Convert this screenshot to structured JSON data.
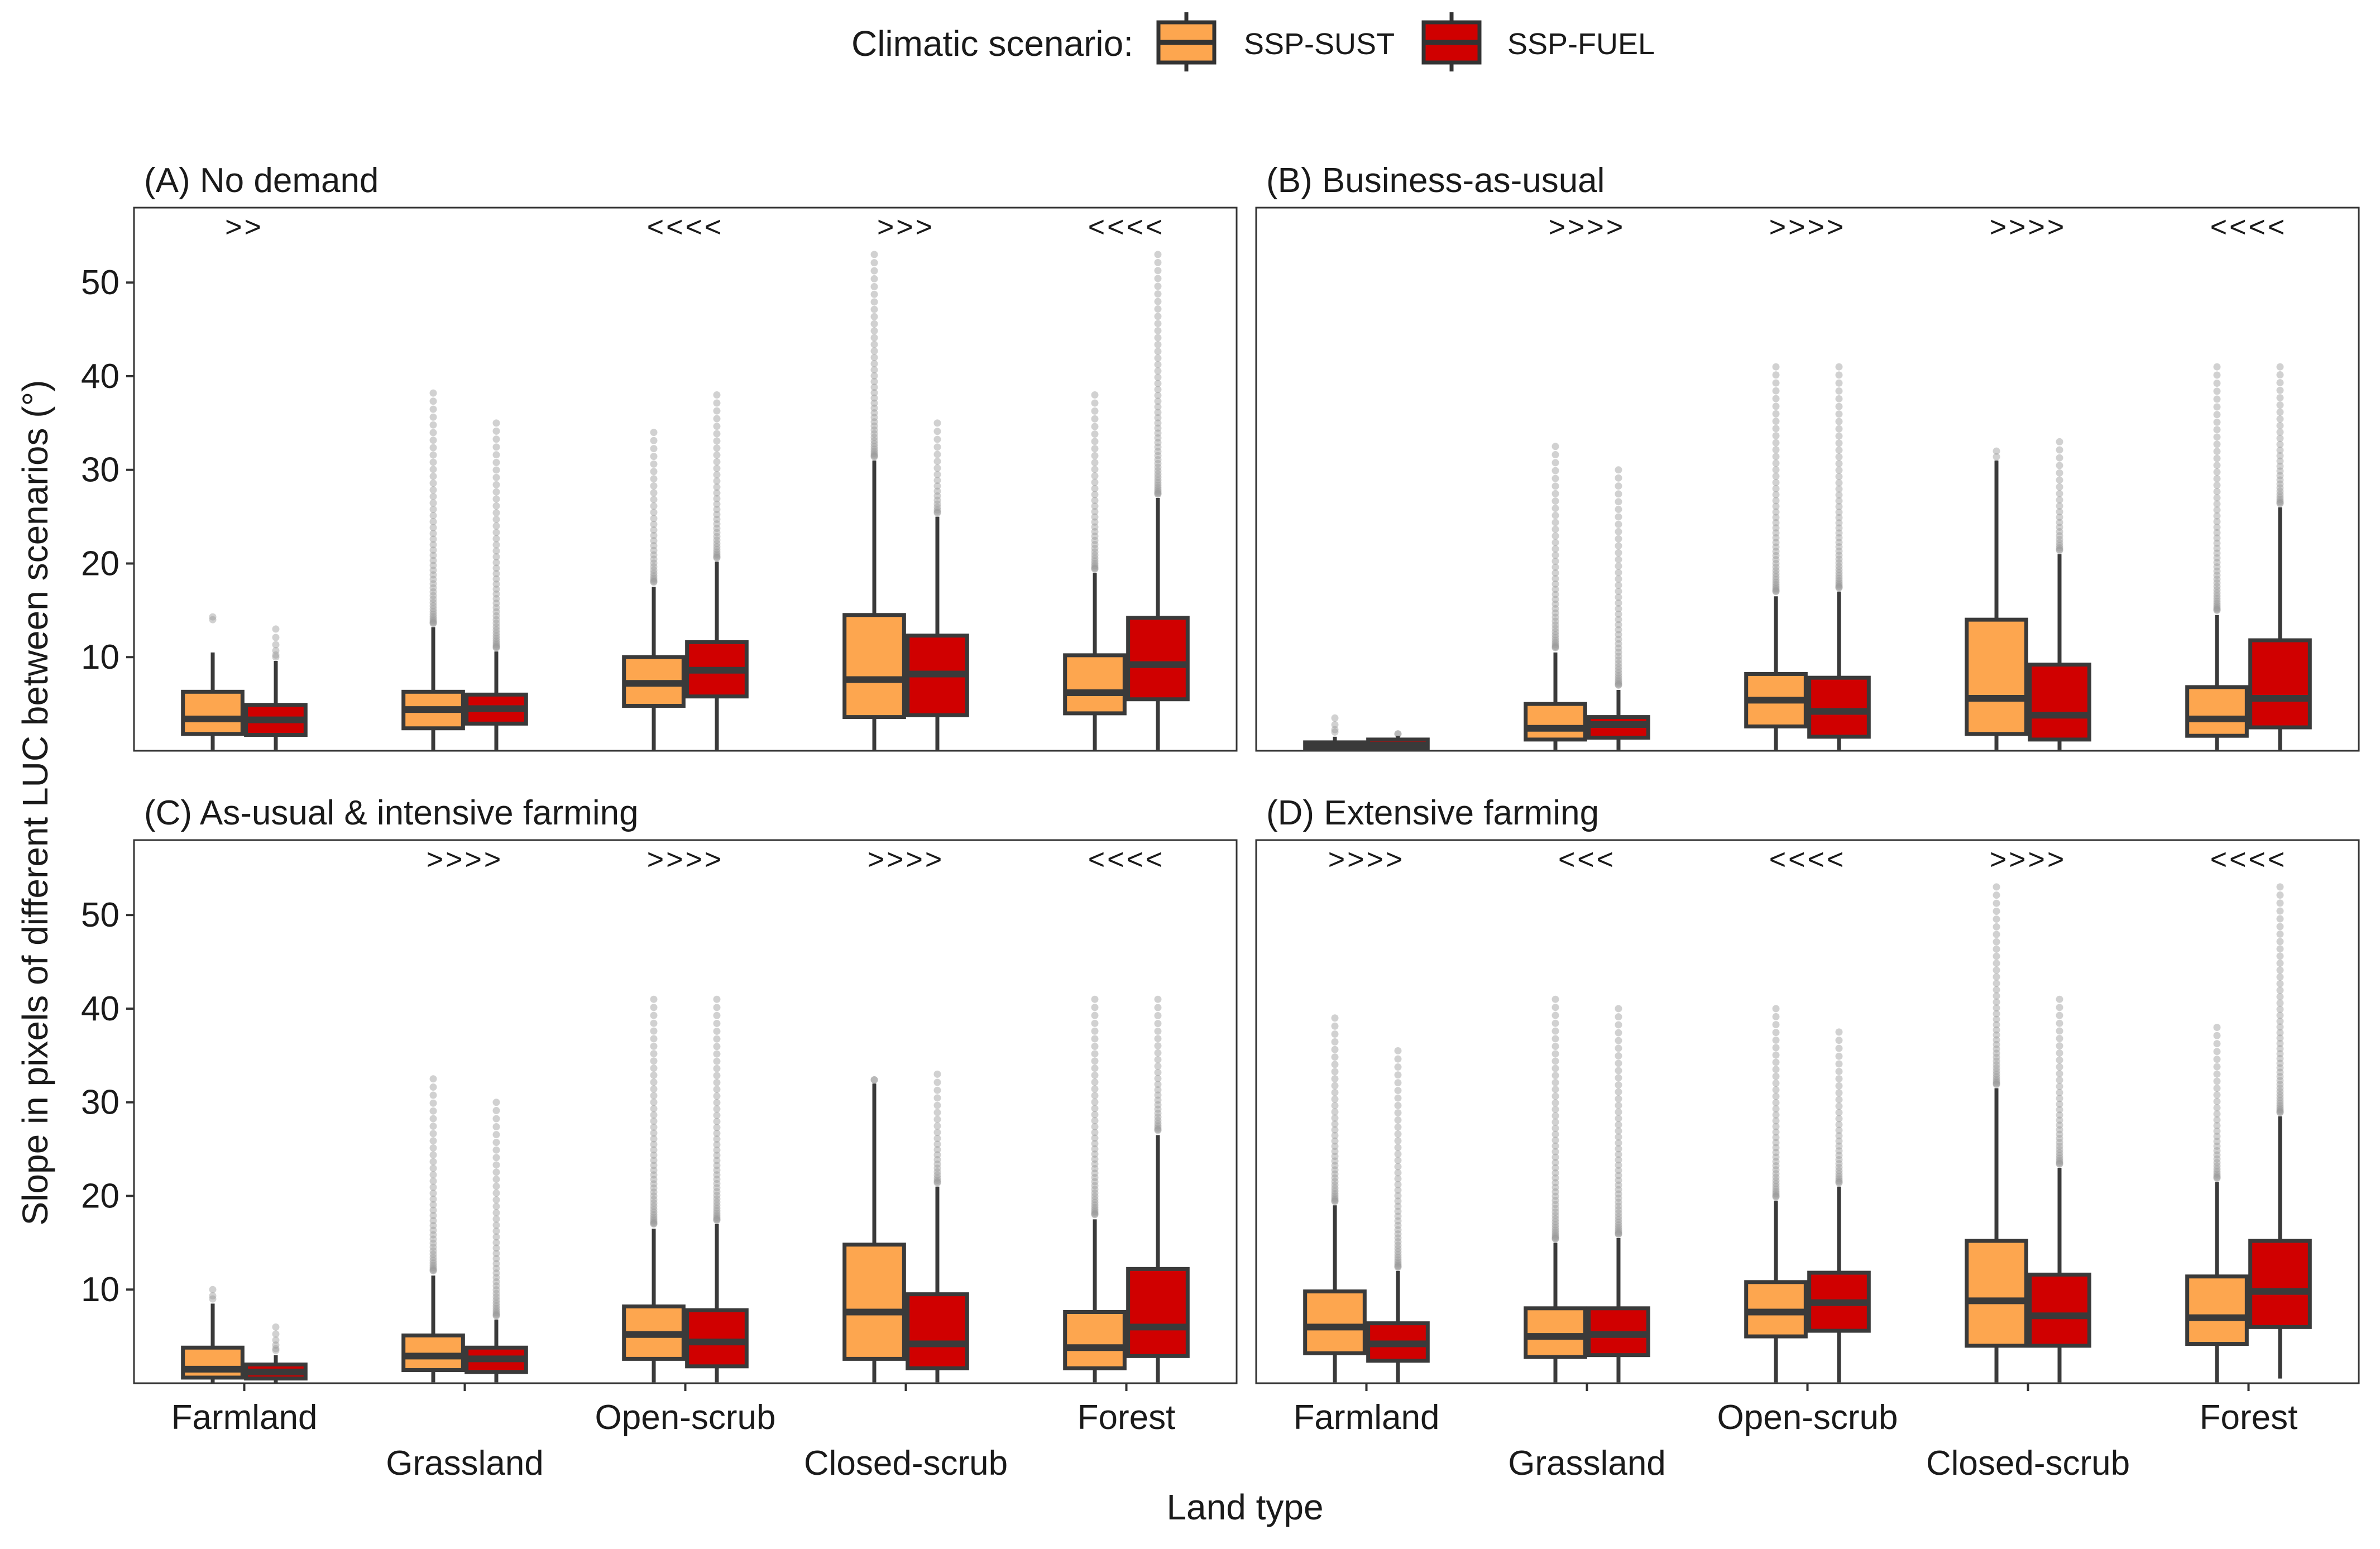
{
  "legend": {
    "title": "Climatic scenario:",
    "entries": [
      {
        "label": "SSP-SUST",
        "color": "#FDA64F"
      },
      {
        "label": "SSP-FUEL",
        "color": "#D00000"
      }
    ]
  },
  "colors": {
    "box_outline": "#3a3a3a",
    "outlier": "#9a9a9a",
    "frame": "#333333"
  },
  "chart_data": {
    "type": "boxplot",
    "xlabel": "Land type",
    "ylabel": "Slope in pixels of different LUC between scenarios (°)",
    "ylim": [
      0,
      58
    ],
    "yticks": [
      10,
      20,
      30,
      40,
      50
    ],
    "categories": [
      "Farmland",
      "Grassland",
      "Open-scrub",
      "Closed-scrub",
      "Forest"
    ],
    "series_names": [
      "SSP-SUST",
      "SSP-FUEL"
    ],
    "panels": [
      {
        "title": "(A) No demand",
        "significance": [
          ">>",
          "",
          "<<<<",
          ">>>",
          "<<<<"
        ],
        "boxes": [
          [
            {
              "q1": 1.8,
              "median": 3.4,
              "q3": 6.3,
              "wlo": 0.1,
              "whi": 10.5,
              "omin": 14.0,
              "omax": 14.3
            },
            {
              "q1": 1.7,
              "median": 3.3,
              "q3": 4.9,
              "wlo": 0.1,
              "whi": 9.6,
              "omin": 10.0,
              "omax": 13.0
            }
          ],
          [
            {
              "q1": 2.4,
              "median": 4.4,
              "q3": 6.3,
              "wlo": 0.1,
              "whi": 13.2,
              "omin": 13.6,
              "omax": 38.2
            },
            {
              "q1": 2.9,
              "median": 4.5,
              "q3": 6.0,
              "wlo": 0.1,
              "whi": 10.6,
              "omin": 11.0,
              "omax": 35.0
            }
          ],
          [
            {
              "q1": 4.8,
              "median": 7.2,
              "q3": 10.0,
              "wlo": 0.1,
              "whi": 17.5,
              "omin": 18.0,
              "omax": 34.0
            },
            {
              "q1": 5.8,
              "median": 8.6,
              "q3": 11.6,
              "wlo": 0.1,
              "whi": 20.2,
              "omin": 20.6,
              "omax": 38.0
            }
          ],
          [
            {
              "q1": 3.6,
              "median": 7.6,
              "q3": 14.5,
              "wlo": 0.1,
              "whi": 31.0,
              "omin": 31.4,
              "omax": 53.0
            },
            {
              "q1": 3.8,
              "median": 8.2,
              "q3": 12.3,
              "wlo": 0.1,
              "whi": 25.0,
              "omin": 25.4,
              "omax": 35.0
            }
          ],
          [
            {
              "q1": 4.0,
              "median": 6.2,
              "q3": 10.2,
              "wlo": 0.1,
              "whi": 19.0,
              "omin": 19.4,
              "omax": 38.0
            },
            {
              "q1": 5.5,
              "median": 9.2,
              "q3": 14.2,
              "wlo": 0.1,
              "whi": 27.0,
              "omin": 27.4,
              "omax": 53.0
            }
          ]
        ]
      },
      {
        "title": "(B) Business-as-usual",
        "significance": [
          "",
          ">>>>",
          ">>>>",
          ">>>>",
          "<<<<"
        ],
        "boxes": [
          [
            {
              "q1": 0.2,
              "median": 0.5,
              "q3": 0.9,
              "wlo": 0.0,
              "whi": 1.5,
              "omin": 2.0,
              "omax": 3.5
            },
            {
              "q1": 0.2,
              "median": 0.6,
              "q3": 1.2,
              "wlo": 0.0,
              "whi": 1.6,
              "omin": 1.8,
              "omax": 1.8
            }
          ],
          [
            {
              "q1": 1.2,
              "median": 2.4,
              "q3": 5.0,
              "wlo": 0.1,
              "whi": 10.5,
              "omin": 11.0,
              "omax": 32.5
            },
            {
              "q1": 1.4,
              "median": 2.8,
              "q3": 3.6,
              "wlo": 0.1,
              "whi": 6.5,
              "omin": 7.0,
              "omax": 30.0
            }
          ],
          [
            {
              "q1": 2.6,
              "median": 5.4,
              "q3": 8.2,
              "wlo": 0.1,
              "whi": 16.5,
              "omin": 17.0,
              "omax": 41.0
            },
            {
              "q1": 1.5,
              "median": 4.2,
              "q3": 7.8,
              "wlo": 0.1,
              "whi": 17.0,
              "omin": 17.4,
              "omax": 41.0
            }
          ],
          [
            {
              "q1": 1.8,
              "median": 5.6,
              "q3": 14.0,
              "wlo": 0.1,
              "whi": 31.0,
              "omin": 31.4,
              "omax": 32.0
            },
            {
              "q1": 1.2,
              "median": 3.8,
              "q3": 9.2,
              "wlo": 0.1,
              "whi": 21.0,
              "omin": 21.4,
              "omax": 33.0
            }
          ],
          [
            {
              "q1": 1.6,
              "median": 3.4,
              "q3": 6.8,
              "wlo": 0.1,
              "whi": 14.5,
              "omin": 15.0,
              "omax": 41.0
            },
            {
              "q1": 2.5,
              "median": 5.6,
              "q3": 11.8,
              "wlo": 0.1,
              "whi": 26.0,
              "omin": 26.4,
              "omax": 41.0
            }
          ]
        ]
      },
      {
        "title": "(C) As-usual & intensive farming",
        "significance": [
          "",
          ">>>>",
          ">>>>",
          ">>>>",
          "<<<<"
        ],
        "boxes": [
          [
            {
              "q1": 0.6,
              "median": 1.5,
              "q3": 3.8,
              "wlo": 0.0,
              "whi": 8.5,
              "omin": 9.0,
              "omax": 10.0
            },
            {
              "q1": 0.5,
              "median": 1.2,
              "q3": 2.0,
              "wlo": 0.0,
              "whi": 3.0,
              "omin": 3.5,
              "omax": 6.0
            }
          ],
          [
            {
              "q1": 1.4,
              "median": 2.9,
              "q3": 5.1,
              "wlo": 0.1,
              "whi": 11.5,
              "omin": 12.0,
              "omax": 32.5
            },
            {
              "q1": 1.2,
              "median": 2.6,
              "q3": 3.8,
              "wlo": 0.1,
              "whi": 6.8,
              "omin": 7.2,
              "omax": 30.0
            }
          ],
          [
            {
              "q1": 2.6,
              "median": 5.2,
              "q3": 8.2,
              "wlo": 0.1,
              "whi": 16.5,
              "omin": 17.0,
              "omax": 41.0
            },
            {
              "q1": 1.8,
              "median": 4.4,
              "q3": 7.8,
              "wlo": 0.1,
              "whi": 17.0,
              "omin": 17.4,
              "omax": 41.0
            }
          ],
          [
            {
              "q1": 2.6,
              "median": 7.6,
              "q3": 14.8,
              "wlo": 0.1,
              "whi": 32.0,
              "omin": 32.4,
              "omax": 32.4
            },
            {
              "q1": 1.6,
              "median": 4.2,
              "q3": 9.5,
              "wlo": 0.1,
              "whi": 21.0,
              "omin": 21.4,
              "omax": 33.0
            }
          ],
          [
            {
              "q1": 1.6,
              "median": 3.8,
              "q3": 7.6,
              "wlo": 0.1,
              "whi": 17.5,
              "omin": 18.0,
              "omax": 41.0
            },
            {
              "q1": 2.9,
              "median": 6.0,
              "q3": 12.2,
              "wlo": 0.1,
              "whi": 26.5,
              "omin": 27.0,
              "omax": 41.0
            }
          ]
        ]
      },
      {
        "title": "(D) Extensive farming",
        "significance": [
          ">>>>",
          "<<<",
          "<<<<",
          ">>>>",
          "<<<<"
        ],
        "boxes": [
          [
            {
              "q1": 3.2,
              "median": 6.0,
              "q3": 9.8,
              "wlo": 0.1,
              "whi": 19.0,
              "omin": 19.4,
              "omax": 39.0
            },
            {
              "q1": 2.4,
              "median": 4.2,
              "q3": 6.4,
              "wlo": 0.1,
              "whi": 12.0,
              "omin": 12.4,
              "omax": 35.5
            }
          ],
          [
            {
              "q1": 2.8,
              "median": 5.0,
              "q3": 8.0,
              "wlo": 0.1,
              "whi": 15.0,
              "omin": 15.4,
              "omax": 41.0
            },
            {
              "q1": 3.0,
              "median": 5.2,
              "q3": 8.0,
              "wlo": 0.1,
              "whi": 15.5,
              "omin": 15.9,
              "omax": 40.0
            }
          ],
          [
            {
              "q1": 5.0,
              "median": 7.6,
              "q3": 10.8,
              "wlo": 0.1,
              "whi": 19.5,
              "omin": 19.9,
              "omax": 40.0
            },
            {
              "q1": 5.6,
              "median": 8.6,
              "q3": 11.8,
              "wlo": 0.1,
              "whi": 21.0,
              "omin": 21.4,
              "omax": 37.5
            }
          ],
          [
            {
              "q1": 4.0,
              "median": 8.8,
              "q3": 15.2,
              "wlo": 0.1,
              "whi": 31.5,
              "omin": 31.9,
              "omax": 53.0
            },
            {
              "q1": 4.0,
              "median": 7.2,
              "q3": 11.6,
              "wlo": 0.1,
              "whi": 23.0,
              "omin": 23.4,
              "omax": 41.0
            }
          ],
          [
            {
              "q1": 4.2,
              "median": 7.0,
              "q3": 11.4,
              "wlo": 0.1,
              "whi": 21.5,
              "omin": 21.9,
              "omax": 38.0
            },
            {
              "q1": 6.0,
              "median": 9.8,
              "q3": 15.2,
              "wlo": 0.5,
              "whi": 28.5,
              "omin": 28.9,
              "omax": 53.0
            }
          ]
        ]
      }
    ]
  }
}
